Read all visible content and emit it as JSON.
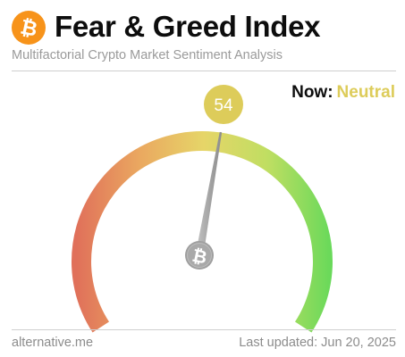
{
  "header": {
    "title": "Fear & Greed Index",
    "subtitle": "Multifactorial Crypto Market Sentiment Analysis",
    "logo_icon": "bitcoin-icon"
  },
  "status": {
    "now_label": "Now:",
    "classification": "Neutral",
    "value": "54"
  },
  "gauge": {
    "min": 0,
    "max": 100,
    "value": 54,
    "center_icon": "bitcoin-icon",
    "colors": {
      "fear": "#e0705a",
      "mid": "#e6d568",
      "greed": "#69d95a",
      "badge": "#ddcc5a",
      "needle": "#a8a8a8",
      "hub": "#a0a0a0"
    }
  },
  "footer": {
    "source": "alternative.me",
    "updated": "Last updated: Jun 20, 2025"
  }
}
